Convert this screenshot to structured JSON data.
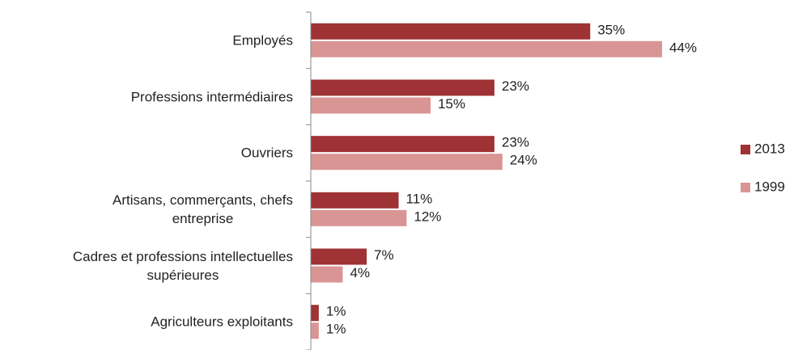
{
  "chart_data": {
    "type": "bar",
    "orientation": "horizontal",
    "categories": [
      "Employés",
      "Professions intermédiaires",
      "Ouvriers",
      "Artisans, commerçants, chefs\nentreprise",
      "Cadres et professions intellectuelles\nsupérieures",
      "Agriculteurs exploitants"
    ],
    "series": [
      {
        "name": "2013",
        "color": "#9e3234",
        "values": [
          35,
          23,
          23,
          11,
          7,
          1
        ],
        "value_labels": [
          "35%",
          "23%",
          "23%",
          "11%",
          "7%",
          "1%"
        ]
      },
      {
        "name": "1999",
        "color": "#d99594",
        "values": [
          44,
          15,
          24,
          12,
          4,
          1
        ],
        "value_labels": [
          "44%",
          "15%",
          "24%",
          "12%",
          "4%",
          "1%"
        ]
      }
    ],
    "legend": "right"
  }
}
